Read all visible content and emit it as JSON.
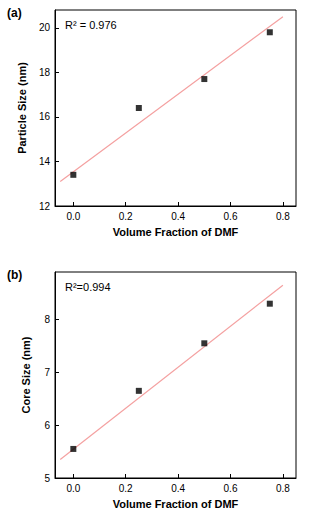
{
  "chart_data": [
    {
      "type": "scatter",
      "title": "(a)",
      "annotation": "R² = 0.976",
      "x_label": "Volume Fraction of DMF",
      "y_label": "Particle Size (nm)",
      "x": [
        0,
        0.25,
        0.5,
        0.75
      ],
      "values": [
        13.4,
        16.4,
        17.7,
        19.8
      ],
      "color": "#000000",
      "marker": "square",
      "fit": {
        "x": [
          -0.05,
          0.8
        ],
        "values": [
          13.1,
          20.5
        ],
        "color": "#f4a0a0",
        "line_style": "solid"
      },
      "xlim": [
        -0.07,
        0.85
      ],
      "xticks": [
        {
          "value": 0,
          "label": "0.0"
        },
        0.2,
        0.4,
        0.6,
        0.8
      ],
      "ylim": [
        12,
        20.8
      ],
      "yticks": [
        12,
        14,
        16,
        18,
        20
      ],
      "grid": false
    },
    {
      "type": "scatter",
      "title": "(b)",
      "annotation": "R²=0.994",
      "x_label": "Volume Fraction of DMF",
      "y_label": "Core Size (nm)",
      "x": [
        0,
        0.25,
        0.5,
        0.75
      ],
      "values": [
        5.55,
        6.65,
        7.55,
        8.3
      ],
      "color": "#000000",
      "marker": "square",
      "fit": {
        "x": [
          -0.05,
          0.8
        ],
        "values": [
          5.35,
          8.65
        ],
        "color": "#f4a0a0",
        "line_style": "solid"
      },
      "xlim": [
        -0.07,
        0.85
      ],
      "xticks": [
        {
          "value": 0,
          "label": "0.0"
        },
        0.2,
        0.4,
        0.6,
        0.8
      ],
      "ylim": [
        5,
        8.9
      ],
      "yticks": [
        5,
        6,
        7,
        8
      ],
      "grid": false
    }
  ]
}
